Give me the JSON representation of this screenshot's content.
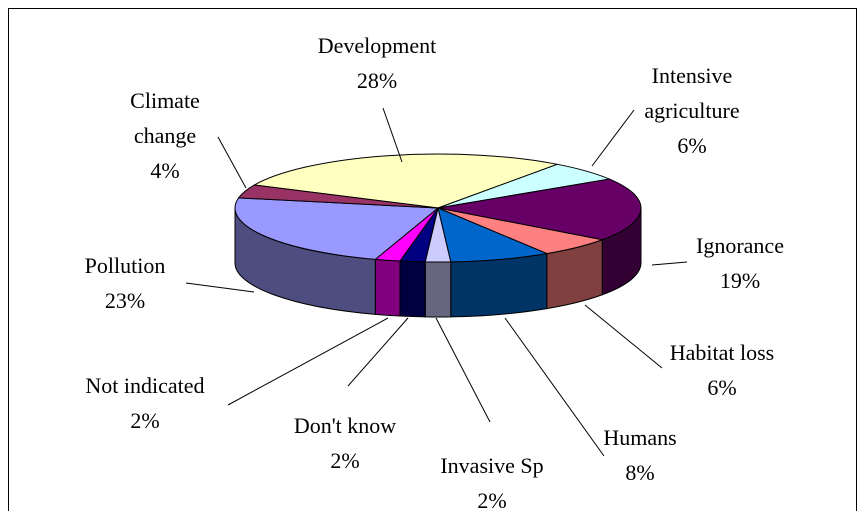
{
  "chart_data": {
    "type": "pie3d",
    "categories": [
      "Development",
      "Intensive agriculture",
      "Ignorance",
      "Habitat loss",
      "Humans",
      "Invasive Sp",
      "Don't know",
      "Not indicated",
      "Pollution",
      "Climate change"
    ],
    "values": [
      28,
      6,
      19,
      6,
      8,
      2,
      2,
      2,
      23,
      4
    ],
    "value_labels": [
      "28%",
      "6%",
      "19%",
      "6%",
      "8%",
      "2%",
      "2%",
      "2%",
      "23%",
      "4%"
    ],
    "colors": [
      "#ffffc0",
      "#ccffff",
      "#660066",
      "#ff8080",
      "#0066cc",
      "#ccccff",
      "#000080",
      "#ff00ff",
      "#9999ff",
      "#993366"
    ]
  }
}
